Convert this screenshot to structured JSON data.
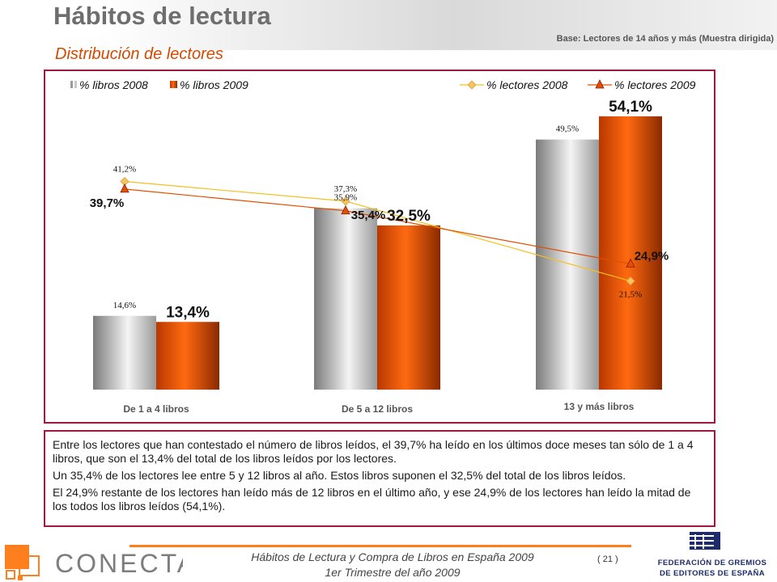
{
  "header": {
    "title": "Hábitos de lectura",
    "subtitle": "Distribución de lectores",
    "base_note": "Base: Lectores de 14 años y más (Muestra dirigida)"
  },
  "chart_data": {
    "type": "bar",
    "categories": [
      "De 1 a 4 libros",
      "De 5 a 12 libros",
      "13 y más libros"
    ],
    "series": [
      {
        "name": "% libros 2008",
        "kind": "bar",
        "values": [
          14.6,
          35.9,
          49.5
        ],
        "labels": [
          "14,6%",
          "35,9%",
          "49,5%"
        ],
        "color": "#b0b0b0"
      },
      {
        "name": "% libros 2009",
        "kind": "bar",
        "values": [
          13.4,
          32.5,
          54.1
        ],
        "labels": [
          "13,4%",
          "32,5%",
          "54,1%"
        ],
        "color": "#e85a00"
      },
      {
        "name": "% lectores 2008",
        "kind": "line",
        "values": [
          41.2,
          37.3,
          21.5
        ],
        "labels": [
          "41,2%",
          "37,3%",
          "21,5%"
        ],
        "color": "#f2c020"
      },
      {
        "name": "% lectores 2009",
        "kind": "line",
        "values": [
          39.7,
          35.4,
          24.9
        ],
        "labels": [
          "39,7%",
          "35,4%",
          "24,9%"
        ],
        "color": "#e05000"
      }
    ],
    "ylim": [
      0,
      60
    ],
    "grid": false,
    "legend": "top"
  },
  "description": {
    "paragraphs": [
      "Entre los lectores que han contestado el número de libros leídos, el 39,7% ha leído en los últimos doce meses tan sólo de 1 a 4 libros, que son el 13,4% del total de los libros leídos por los lectores.",
      "Un 35,4% de los lectores lee entre 5 y 12 libros al año. Estos libros suponen el 32,5% del total de los libros leídos.",
      "El 24,9% restante de los lectores han leído más de 12 libros en el último año, y ese 24,9% de los lectores han leído la mitad de los todos los libros leídos (54,1%)."
    ]
  },
  "footer": {
    "line1": "Hábitos de Lectura y Compra de Libros en España 2009",
    "line2": "1er Trimestre del año 2009",
    "page_number": "( 21 )",
    "conecta_logo": "CONECTA",
    "fge_line1": "FEDERACIÓN DE GREMIOS",
    "fge_line2": "DE EDITORES DE ESPAÑA"
  },
  "colors": {
    "accent": "#a0183c",
    "orange": "#e85a00",
    "title_gray": "#6e6e6e"
  }
}
